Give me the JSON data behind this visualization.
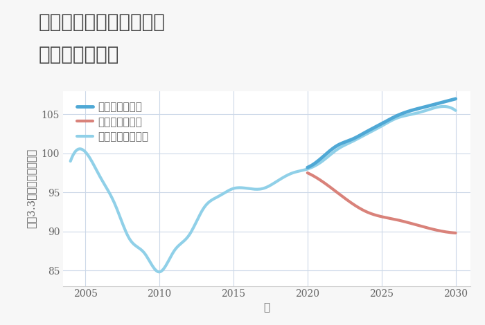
{
  "title_line1": "大阪府堺市堺区陵西通の",
  "title_line2": "土地の価格推移",
  "xlabel": "年",
  "ylabel": "坪（3.3㎡）単価（万円）",
  "background_color": "#f7f7f7",
  "plot_bg_color": "#ffffff",
  "ylim": [
    83,
    108
  ],
  "xlim": [
    2003.5,
    2031
  ],
  "yticks": [
    85,
    90,
    95,
    100,
    105
  ],
  "xticks": [
    2005,
    2010,
    2015,
    2020,
    2025,
    2030
  ],
  "normal_scenario": {
    "x": [
      2004,
      2005,
      2006,
      2007,
      2008,
      2009,
      2010,
      2011,
      2012,
      2013,
      2014,
      2015,
      2016,
      2017,
      2018,
      2019,
      2020,
      2021,
      2022,
      2023,
      2024,
      2025,
      2026,
      2027,
      2028,
      2029,
      2030
    ],
    "y": [
      99.0,
      100.2,
      97.0,
      93.5,
      89.0,
      87.2,
      84.8,
      87.5,
      89.5,
      93.0,
      94.5,
      95.5,
      95.5,
      95.5,
      96.5,
      97.5,
      98.0,
      99.0,
      100.5,
      101.5,
      102.5,
      103.5,
      104.5,
      105.0,
      105.5,
      106.0,
      105.5
    ],
    "color": "#90d0e8",
    "linewidth": 3.0,
    "label": "ノーマルシナリオ"
  },
  "good_scenario": {
    "x": [
      2020,
      2021,
      2022,
      2023,
      2024,
      2025,
      2026,
      2027,
      2028,
      2029,
      2030
    ],
    "y": [
      98.2,
      99.5,
      101.0,
      101.8,
      102.8,
      103.8,
      104.8,
      105.5,
      106.0,
      106.5,
      107.0
    ],
    "color": "#4fa8d5",
    "linewidth": 3.5,
    "label": "グッドシナリオ"
  },
  "bad_scenario": {
    "x": [
      2020,
      2022,
      2024,
      2026,
      2028,
      2030
    ],
    "y": [
      97.5,
      95.0,
      92.5,
      91.5,
      90.5,
      89.8
    ],
    "color": "#d9827a",
    "linewidth": 3.0,
    "label": "バッドシナリオ"
  },
  "grid_color": "#ccd8e8",
  "title_color": "#444444",
  "tick_color": "#666666",
  "axis_color": "#cccccc",
  "title_fontsize": 20,
  "label_fontsize": 11,
  "tick_fontsize": 10,
  "legend_fontsize": 11
}
